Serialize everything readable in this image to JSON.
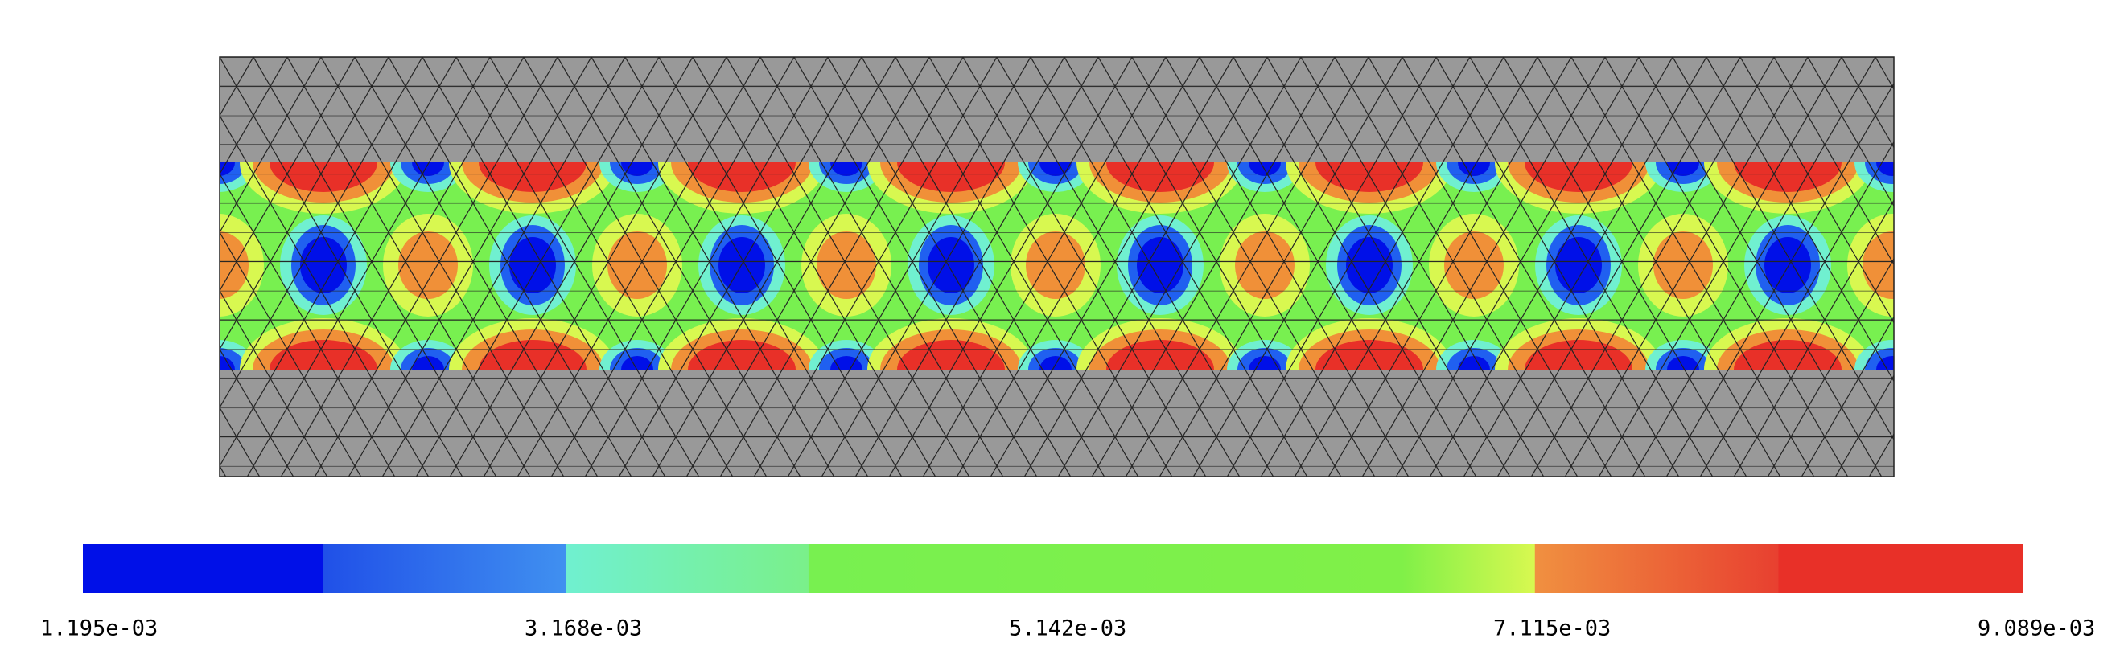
{
  "colorbar": {
    "labels": [
      "1.195e-03",
      "3.168e-03",
      "5.142e-03",
      "7.115e-03",
      "9.089e-03"
    ]
  }
}
